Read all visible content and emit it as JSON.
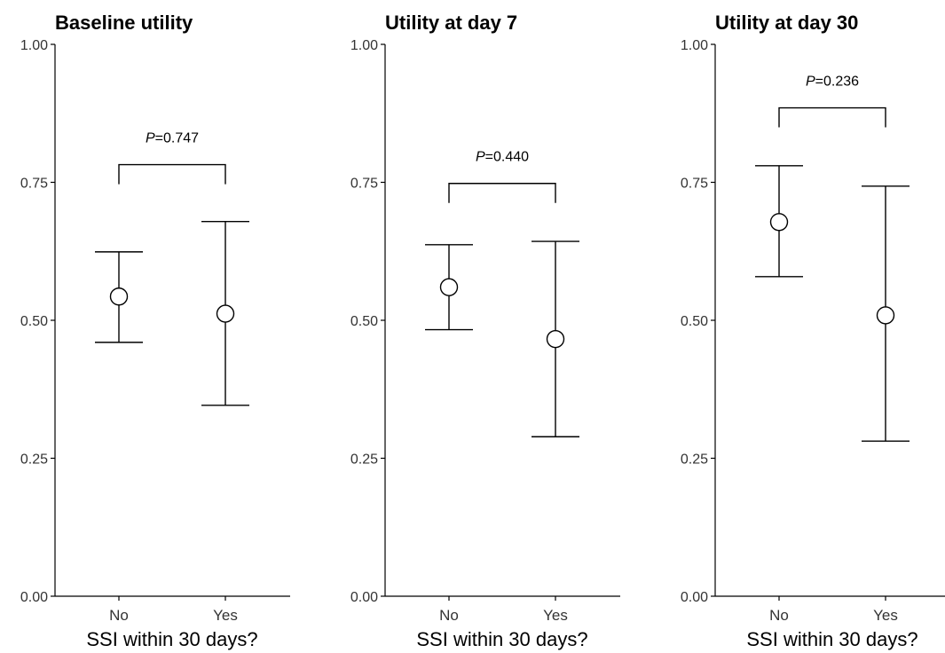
{
  "chart_data": [
    {
      "type": "errorbar",
      "title": "Baseline utility",
      "xlabel": "SSI within 30 days?",
      "ylabel": "",
      "categories": [
        "No",
        "Yes"
      ],
      "mean": [
        0.543,
        0.512
      ],
      "lower": [
        0.46,
        0.346
      ],
      "upper": [
        0.624,
        0.679
      ],
      "ylim": [
        0,
        1
      ],
      "yticks": [
        "0.00",
        "0.25",
        "0.50",
        "0.75",
        "1.00"
      ],
      "p_label": "P",
      "p_text": "=0.747",
      "bracket_y": 0.782,
      "grid": false
    },
    {
      "type": "errorbar",
      "title": "Utility at day 7",
      "xlabel": "SSI within 30 days?",
      "ylabel": "",
      "categories": [
        "No",
        "Yes"
      ],
      "mean": [
        0.56,
        0.466
      ],
      "lower": [
        0.483,
        0.289
      ],
      "upper": [
        0.637,
        0.643
      ],
      "ylim": [
        0,
        1
      ],
      "yticks": [
        "0.00",
        "0.25",
        "0.50",
        "0.75",
        "1.00"
      ],
      "p_label": "P",
      "p_text": "=0.440",
      "bracket_y": 0.748,
      "grid": false
    },
    {
      "type": "errorbar",
      "title": "Utility at day 30",
      "xlabel": "SSI within 30 days?",
      "ylabel": "",
      "categories": [
        "No",
        "Yes"
      ],
      "mean": [
        0.678,
        0.509
      ],
      "lower": [
        0.579,
        0.281
      ],
      "upper": [
        0.78,
        0.743
      ],
      "ylim": [
        0,
        1
      ],
      "yticks": [
        "0.00",
        "0.25",
        "0.50",
        "0.75",
        "1.00"
      ],
      "p_label": "P",
      "p_text": "=0.236",
      "bracket_y": 0.885,
      "grid": false
    }
  ]
}
